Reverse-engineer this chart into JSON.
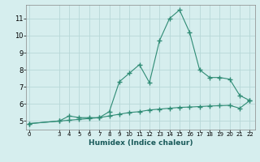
{
  "title": "",
  "xlabel": "Humidex (Indice chaleur)",
  "x_ticks": [
    0,
    3,
    4,
    5,
    6,
    7,
    8,
    9,
    10,
    11,
    12,
    13,
    14,
    15,
    16,
    17,
    18,
    19,
    20,
    21,
    22
  ],
  "line1_x": [
    0,
    3,
    4,
    5,
    6,
    7,
    8,
    9,
    10,
    11,
    12,
    13,
    14,
    15,
    16,
    17,
    18,
    19,
    20,
    21,
    22
  ],
  "line1_y": [
    4.85,
    5.0,
    5.3,
    5.2,
    5.2,
    5.2,
    5.55,
    7.3,
    7.8,
    8.3,
    7.25,
    9.7,
    11.0,
    11.5,
    10.2,
    8.0,
    7.55,
    7.55,
    7.45,
    6.5,
    6.2
  ],
  "line2_x": [
    0,
    3,
    4,
    5,
    6,
    7,
    8,
    9,
    10,
    11,
    12,
    13,
    14,
    15,
    16,
    17,
    18,
    19,
    20,
    21,
    22
  ],
  "line2_y": [
    4.85,
    5.0,
    5.05,
    5.1,
    5.15,
    5.2,
    5.3,
    5.4,
    5.5,
    5.55,
    5.65,
    5.7,
    5.75,
    5.8,
    5.82,
    5.85,
    5.88,
    5.9,
    5.92,
    5.75,
    6.2
  ],
  "line_color": "#2e8b74",
  "bg_color": "#d6eeee",
  "grid_color": "#b8d8d8",
  "ylim": [
    4.5,
    11.8
  ],
  "yticks": [
    5,
    6,
    7,
    8,
    9,
    10,
    11
  ],
  "xlim": [
    -0.3,
    22.5
  ]
}
